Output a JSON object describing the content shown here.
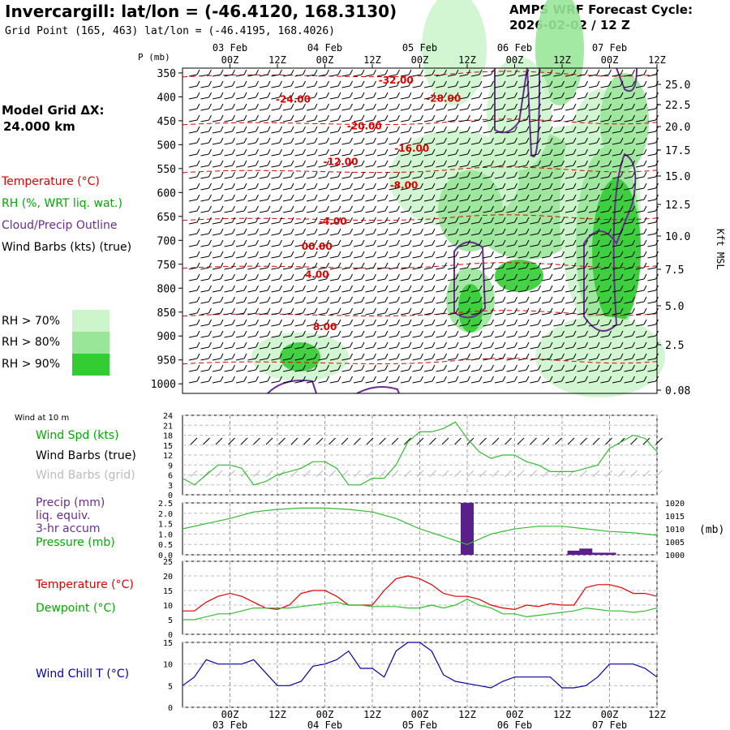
{
  "header": {
    "title": "Invercargill:  lat/lon = (-46.4120, 168.3130)",
    "grid_point": "Grid Point (165, 463) lat/lon = (-46.4195, 168.4026)",
    "cycle_line1": "AMPS WRF Forecast Cycle:",
    "cycle_line2": "2026-02-02 / 12  Z",
    "model_grid_line1": "Model Grid ΔX:",
    "model_grid_line2": " 24.000 km"
  },
  "legend": {
    "temperature": "Temperature (°C)",
    "rh": "RH (%, WRT liq. wat.)",
    "cloud": "Cloud/Precip Outline",
    "wind_barbs": "Wind Barbs (kts) (true)",
    "rh70": "RH > 70%",
    "rh80": "RH > 80%",
    "rh90": "RH > 90%",
    "rh_colors": [
      "#ccf5cc",
      "#99e699",
      "#33cc33"
    ],
    "temperature_color": "#e00000",
    "cloud_color": "#6a2c91"
  },
  "panel_labels": {
    "wind_at_10m": "Wind at 10 m",
    "wind_spd": "Wind Spd (kts)",
    "wind_barbs_true": "Wind Barbs (true)",
    "wind_barbs_grid": "Wind Barbs (grid)",
    "precip1": "Precip (mm)",
    "precip2": "liq. equiv.",
    "precip3": "3-hr accum",
    "pressure": "Pressure (mb)",
    "temperature": "Temperature (°C)",
    "dewpoint": "Dewpoint (°C)",
    "wind_chill": "Wind Chill T (°C)",
    "p_unit": "P (mb)",
    "kft": "Kft MSL",
    "pressure_unit": "(mb)"
  },
  "chart_data": [
    {
      "type": "heatmap",
      "name": "cross_section",
      "x_ticks": [
        "00Z",
        "12Z",
        "00Z",
        "12Z",
        "00Z",
        "12Z",
        "00Z",
        "12Z",
        "00Z",
        "12Z"
      ],
      "date_labels": [
        "03 Feb",
        "04 Feb",
        "05 Feb",
        "06 Feb",
        "07 Feb"
      ],
      "pressure_ticks": [
        350,
        400,
        450,
        500,
        550,
        600,
        650,
        700,
        750,
        800,
        850,
        900,
        950,
        1000
      ],
      "kft_ticks": [
        "25.0",
        "22.5",
        "20.0",
        "17.5",
        "15.0",
        "12.5",
        "10.0",
        "7.5",
        "5.0",
        "2.5",
        "0.08"
      ],
      "temperature_labels": [
        {
          "text": "-32.00",
          "hour": 54,
          "p": 372
        },
        {
          "text": "-28.00",
          "hour": 66,
          "p": 410
        },
        {
          "text": "-24.00",
          "hour": 28,
          "p": 412
        },
        {
          "text": "-20.00",
          "hour": 46,
          "p": 468
        },
        {
          "text": "-16.00",
          "hour": 58,
          "p": 515
        },
        {
          "text": "-12.00",
          "hour": 40,
          "p": 543
        },
        {
          "text": "-8.00",
          "hour": 56,
          "p": 592
        },
        {
          "text": "-4.00",
          "hour": 38,
          "p": 667
        },
        {
          "text": "00.00",
          "hour": 34,
          "p": 720
        },
        {
          "text": "4.00",
          "hour": 34,
          "p": 778
        },
        {
          "text": "8.00",
          "hour": 36,
          "p": 888
        }
      ]
    },
    {
      "type": "line",
      "name": "wind_speed",
      "ylim": [
        0,
        24
      ],
      "y_ticks": [
        0,
        3,
        6,
        9,
        12,
        15,
        18,
        21,
        24
      ],
      "x_hours": [
        0,
        3,
        6,
        9,
        12,
        15,
        18,
        21,
        24,
        27,
        30,
        33,
        36,
        39,
        42,
        45,
        48,
        51,
        54,
        57,
        60,
        63,
        66,
        69,
        72,
        75,
        78,
        81,
        84,
        87,
        90,
        93,
        96,
        99,
        102,
        105,
        108,
        111,
        114,
        117,
        120
      ],
      "values": [
        5,
        3,
        6,
        9,
        9,
        8,
        3,
        4,
        6,
        7,
        8,
        10,
        10,
        8,
        3,
        3,
        5,
        5,
        9,
        16,
        19,
        19,
        20,
        22,
        17,
        13,
        11,
        12,
        12,
        10,
        9,
        7,
        7,
        7,
        8,
        9,
        14,
        16,
        18,
        17,
        13
      ]
    },
    {
      "type": "bar",
      "name": "precip_pressure",
      "precip_ylim": [
        0,
        2.5
      ],
      "precip_ticks": [
        "0.0",
        "0.5",
        "1.0",
        "1.5",
        "2.0",
        "2.5"
      ],
      "pressure_ticks": [
        1000,
        1005,
        1010,
        1015,
        1020
      ],
      "precip": [
        {
          "hour": 72,
          "value": 2.5
        },
        {
          "hour": 99,
          "value": 0.2
        },
        {
          "hour": 102,
          "value": 0.3
        },
        {
          "hour": 105,
          "value": 0.1
        },
        {
          "hour": 108,
          "value": 0.1
        }
      ],
      "pressure_x_hours": [
        0,
        6,
        12,
        18,
        24,
        30,
        36,
        42,
        48,
        54,
        60,
        66,
        72,
        78,
        84,
        90,
        96,
        102,
        108,
        114,
        120
      ],
      "pressure_values": [
        1010,
        1012,
        1014,
        1016.5,
        1017.5,
        1018,
        1018,
        1017.5,
        1016.5,
        1014,
        1010,
        1007,
        1004,
        1008,
        1010,
        1011,
        1011,
        1010,
        1009,
        1008.5,
        1007.5
      ]
    },
    {
      "type": "line",
      "name": "temperature_dewpoint",
      "ylim": [
        0,
        25
      ],
      "y_ticks": [
        0,
        5,
        10,
        15,
        20,
        25
      ],
      "x_hours": [
        0,
        3,
        6,
        9,
        12,
        15,
        18,
        21,
        24,
        27,
        30,
        33,
        36,
        39,
        42,
        45,
        48,
        51,
        54,
        57,
        60,
        63,
        66,
        69,
        72,
        75,
        78,
        81,
        84,
        87,
        90,
        93,
        96,
        99,
        102,
        105,
        108,
        111,
        114,
        117,
        120
      ],
      "temperature": [
        8,
        8,
        11,
        13,
        14,
        13,
        11,
        9,
        8.5,
        10,
        14,
        15,
        15,
        13,
        10,
        10,
        10,
        15,
        19,
        20,
        19,
        17,
        14,
        13,
        13,
        12,
        10,
        9,
        8.5,
        10,
        9.5,
        10.5,
        10,
        10,
        16,
        17,
        17,
        16,
        14,
        14,
        13
      ],
      "dewpoint": [
        5,
        5,
        6,
        7,
        7,
        8,
        9,
        9,
        9,
        9,
        9.5,
        10,
        10.5,
        11,
        10,
        10,
        9.5,
        9.5,
        9.5,
        9,
        9,
        10,
        9,
        10,
        12,
        10,
        9,
        7,
        7,
        6,
        6.5,
        7,
        7.5,
        8,
        9,
        8.5,
        8,
        8,
        7.5,
        8,
        9
      ]
    },
    {
      "type": "line",
      "name": "wind_chill",
      "ylim": [
        0,
        15
      ],
      "y_ticks": [
        0,
        5,
        10,
        15
      ],
      "x_hours": [
        0,
        3,
        6,
        9,
        12,
        15,
        18,
        21,
        24,
        27,
        30,
        33,
        36,
        39,
        42,
        45,
        48,
        51,
        54,
        57,
        60,
        63,
        66,
        69,
        72,
        75,
        78,
        81,
        84,
        87,
        90,
        93,
        96,
        99,
        102,
        105,
        108,
        111,
        114,
        117,
        120
      ],
      "values": [
        5,
        7,
        11,
        10,
        10,
        10,
        11,
        8,
        5,
        5,
        6,
        9.5,
        10,
        11,
        13,
        9,
        9,
        7,
        13,
        15,
        15,
        13,
        7.5,
        6,
        5.5,
        5,
        4.5,
        6,
        7,
        7,
        7,
        7,
        4.5,
        4.5,
        5,
        7,
        10,
        10,
        10,
        9,
        7
      ]
    }
  ]
}
